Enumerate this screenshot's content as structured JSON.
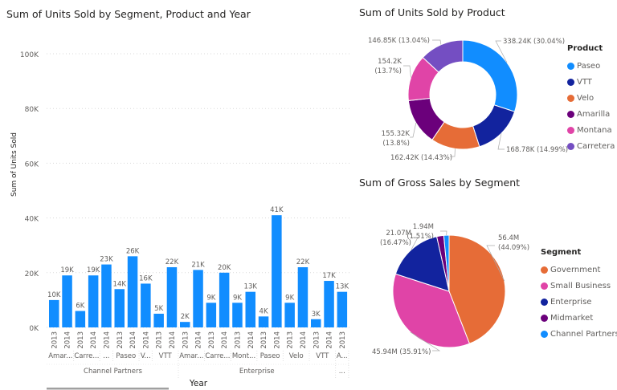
{
  "chart_data": [
    {
      "type": "bar",
      "title": "Sum of Units Sold by Segment, Product and Year",
      "xlabel": "Year",
      "ylabel": "Sum of Units Sold",
      "ylim": [
        0,
        100000
      ],
      "yticks": [
        "0K",
        "20K",
        "40K",
        "60K",
        "80K",
        "100K"
      ],
      "grid": true,
      "color": "#118dff",
      "groups": [
        {
          "segment": "Channel Partners",
          "products": [
            {
              "label": "Amar...",
              "bars": [
                {
                  "year": "2013",
                  "value": 10000,
                  "label": "10K"
                },
                {
                  "year": "2014",
                  "value": 19000,
                  "label": "19K"
                }
              ]
            },
            {
              "label": "Carre...",
              "bars": [
                {
                  "year": "2013",
                  "value": 6000,
                  "label": "6K"
                },
                {
                  "year": "2014",
                  "value": 19000,
                  "label": "19K"
                }
              ]
            },
            {
              "label": "...",
              "bars": [
                {
                  "year": "2014",
                  "value": 23000,
                  "label": "23K"
                }
              ]
            },
            {
              "label": "Paseo",
              "bars": [
                {
                  "year": "2013",
                  "value": 14000,
                  "label": "14K"
                },
                {
                  "year": "2014",
                  "value": 26000,
                  "label": "26K"
                }
              ]
            },
            {
              "label": "V...",
              "bars": [
                {
                  "year": "2014",
                  "value": 16000,
                  "label": "16K"
                }
              ]
            },
            {
              "label": "VTT",
              "bars": [
                {
                  "year": "2013",
                  "value": 5000,
                  "label": "5K"
                },
                {
                  "year": "2014",
                  "value": 22000,
                  "label": "22K"
                }
              ]
            }
          ]
        },
        {
          "segment": "Enterprise",
          "products": [
            {
              "label": "Amar...",
              "bars": [
                {
                  "year": "2013",
                  "value": 2000,
                  "label": "2K"
                },
                {
                  "year": "2014",
                  "value": 21000,
                  "label": "21K"
                }
              ]
            },
            {
              "label": "Carre...",
              "bars": [
                {
                  "year": "2013",
                  "value": 9000,
                  "label": "9K"
                },
                {
                  "year": "2014",
                  "value": 20000,
                  "label": "20K"
                }
              ]
            },
            {
              "label": "Mont...",
              "bars": [
                {
                  "year": "2013",
                  "value": 9000,
                  "label": "9K"
                },
                {
                  "year": "2014",
                  "value": 13000,
                  "label": "13K"
                }
              ]
            },
            {
              "label": "Paseo",
              "bars": [
                {
                  "year": "2013",
                  "value": 4000,
                  "label": "4K"
                },
                {
                  "year": "2014",
                  "value": 41000,
                  "label": "41K"
                }
              ]
            },
            {
              "label": "Velo",
              "bars": [
                {
                  "year": "2013",
                  "value": 9000,
                  "label": "9K"
                },
                {
                  "year": "2014",
                  "value": 22000,
                  "label": "22K"
                }
              ]
            },
            {
              "label": "VTT",
              "bars": [
                {
                  "year": "2013",
                  "value": 3000,
                  "label": "3K"
                },
                {
                  "year": "2014",
                  "value": 17000,
                  "label": "17K"
                }
              ]
            }
          ]
        },
        {
          "segment": "...",
          "products": [
            {
              "label": "A...",
              "bars": [
                {
                  "year": "2013",
                  "value": 13000,
                  "label": "13K"
                }
              ]
            }
          ]
        }
      ]
    },
    {
      "type": "donut",
      "title": "Sum of Units Sold by Product",
      "legend_title": "Product",
      "legend_position": "right",
      "slices": [
        {
          "name": "Paseo",
          "value": 338240,
          "label": "338.24K (30.04%)",
          "color": "#118dff"
        },
        {
          "name": "VTT",
          "value": 168780,
          "label": "168.78K (14.99%)",
          "color": "#12239e"
        },
        {
          "name": "Velo",
          "value": 162420,
          "label": "162.42K (14.43%)",
          "color": "#e66c37"
        },
        {
          "name": "Amarilla",
          "value": 155320,
          "label": "155.32K (13.8%)",
          "color": "#6b007b"
        },
        {
          "name": "Montana",
          "value": 154200,
          "label": "154.2K (13.7%)",
          "color": "#e044a7"
        },
        {
          "name": "Carretera",
          "value": 146850,
          "label": "146.85K (13.04%)",
          "color": "#744ec2"
        }
      ]
    },
    {
      "type": "pie",
      "title": "Sum of Gross Sales by Segment",
      "legend_title": "Segment",
      "legend_position": "right",
      "slices": [
        {
          "name": "Government",
          "value": 56.4,
          "label": "56.4M (44.09%)",
          "color": "#e66c37"
        },
        {
          "name": "Small Business",
          "value": 45.94,
          "label": "45.94M (35.91%)",
          "color": "#e044a7"
        },
        {
          "name": "Enterprise",
          "value": 21.07,
          "label": "21.07M (16.47%)",
          "color": "#12239e"
        },
        {
          "name": "Midmarket",
          "value": 2.58,
          "label": "",
          "color": "#6b007b"
        },
        {
          "name": "Channel Partners",
          "value": 1.94,
          "label": "1.94M (1.51%)",
          "color": "#118dff"
        }
      ]
    }
  ]
}
